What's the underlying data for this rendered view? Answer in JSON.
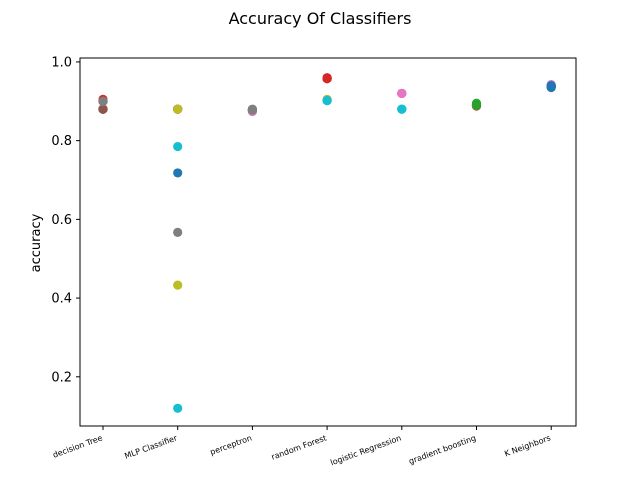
{
  "chart_data": {
    "type": "scatter",
    "title": "Accuracy Of Classifiers",
    "xlabel": "",
    "ylabel": "accuracy",
    "categories": [
      "decision Tree",
      "MLP Classifier",
      "perceptron",
      "random Forest",
      "logistic Regression",
      "gradient boosting",
      "K Neighbors"
    ],
    "ylim": [
      0.075,
      1.01
    ],
    "yticks": [
      0.2,
      0.4,
      0.6,
      0.8,
      1.0
    ],
    "ytick_labels": [
      "0.2",
      "0.4",
      "0.6",
      "0.8",
      "1.0"
    ],
    "grid": false,
    "colors": [
      "#1f77b4",
      "#ff7f0e",
      "#2ca02c",
      "#d62728",
      "#9467bd",
      "#8c564b",
      "#e377c2",
      "#7f7f7f",
      "#bcbd22",
      "#17becf"
    ],
    "series": [
      {
        "values": [
          0.88,
          0.718,
          0.878,
          0.958,
          0.92,
          0.89,
          0.936
        ]
      },
      {
        "values": [
          0.88,
          0.88,
          0.876,
          0.958,
          0.92,
          0.89,
          0.938
        ]
      },
      {
        "values": [
          0.88,
          0.88,
          0.878,
          0.958,
          0.92,
          0.895,
          0.936
        ]
      },
      {
        "values": [
          0.905,
          0.88,
          0.878,
          0.96,
          0.92,
          0.888,
          0.938
        ]
      },
      {
        "values": [
          0.88,
          0.88,
          0.878,
          0.958,
          0.92,
          0.89,
          0.94
        ]
      },
      {
        "values": [
          0.88,
          0.88,
          0.878,
          0.958,
          0.92,
          0.89,
          0.938
        ]
      },
      {
        "values": [
          0.9,
          0.88,
          0.874,
          0.958,
          0.92,
          0.89,
          0.942
        ]
      },
      {
        "values": [
          0.9,
          0.567,
          0.879,
          0.958,
          0.92,
          0.89,
          0.938
        ]
      },
      {
        "values": [
          0.9,
          0.433,
          0.88,
          0.905,
          0.92,
          0.89,
          0.938
        ]
      },
      {
        "values": [
          0.9,
          0.785,
          0.878,
          0.902,
          0.88,
          0.89,
          0.938
        ]
      },
      {
        "values": [
          0.9,
          0.12,
          0.878,
          0.902,
          0.88,
          0.89,
          0.938
        ]
      },
      {
        "values": [
          0.9,
          0.88,
          0.878,
          0.902,
          0.88,
          0.89,
          0.935
        ]
      }
    ],
    "point_colors": [
      [
        "#8c564b",
        "#1f77b4",
        "#1f77b4",
        "#d62728",
        "#e377c2",
        "#2ca02c",
        "#9467bd"
      ],
      [
        "#8c564b",
        "#ff7f0e",
        "#ff7f0e",
        "#d62728",
        "#e377c2",
        "#2ca02c",
        "#9467bd"
      ],
      [
        "#8c564b",
        "#2ca02c",
        "#2ca02c",
        "#d62728",
        "#e377c2",
        "#2ca02c",
        "#9467bd"
      ],
      [
        "#d62728",
        "#d62728",
        "#d62728",
        "#d62728",
        "#e377c2",
        "#d62728",
        "#9467bd"
      ],
      [
        "#8c564b",
        "#9467bd",
        "#9467bd",
        "#d62728",
        "#e377c2",
        "#2ca02c",
        "#9467bd"
      ],
      [
        "#8c564b",
        "#8c564b",
        "#8c564b",
        "#d62728",
        "#e377c2",
        "#2ca02c",
        "#1f77b4"
      ],
      [
        "#7f7f7f",
        "#e377c2",
        "#e377c2",
        "#d62728",
        "#e377c2",
        "#2ca02c",
        "#9467bd"
      ],
      [
        "#7f7f7f",
        "#7f7f7f",
        "#7f7f7f",
        "#d62728",
        "#e377c2",
        "#2ca02c",
        "#1f77b4"
      ],
      [
        "#7f7f7f",
        "#bcbd22",
        "#7f7f7f",
        "#bcbd22",
        "#e377c2",
        "#2ca02c",
        "#1f77b4"
      ],
      [
        "#7f7f7f",
        "#17becf",
        "#7f7f7f",
        "#17becf",
        "#17becf",
        "#2ca02c",
        "#1f77b4"
      ],
      [
        "#7f7f7f",
        "#17becf",
        "#7f7f7f",
        "#17becf",
        "#17becf",
        "#2ca02c",
        "#1f77b4"
      ],
      [
        "#7f7f7f",
        "#bcbd22",
        "#7f7f7f",
        "#17becf",
        "#17becf",
        "#2ca02c",
        "#1f77b4"
      ]
    ]
  }
}
